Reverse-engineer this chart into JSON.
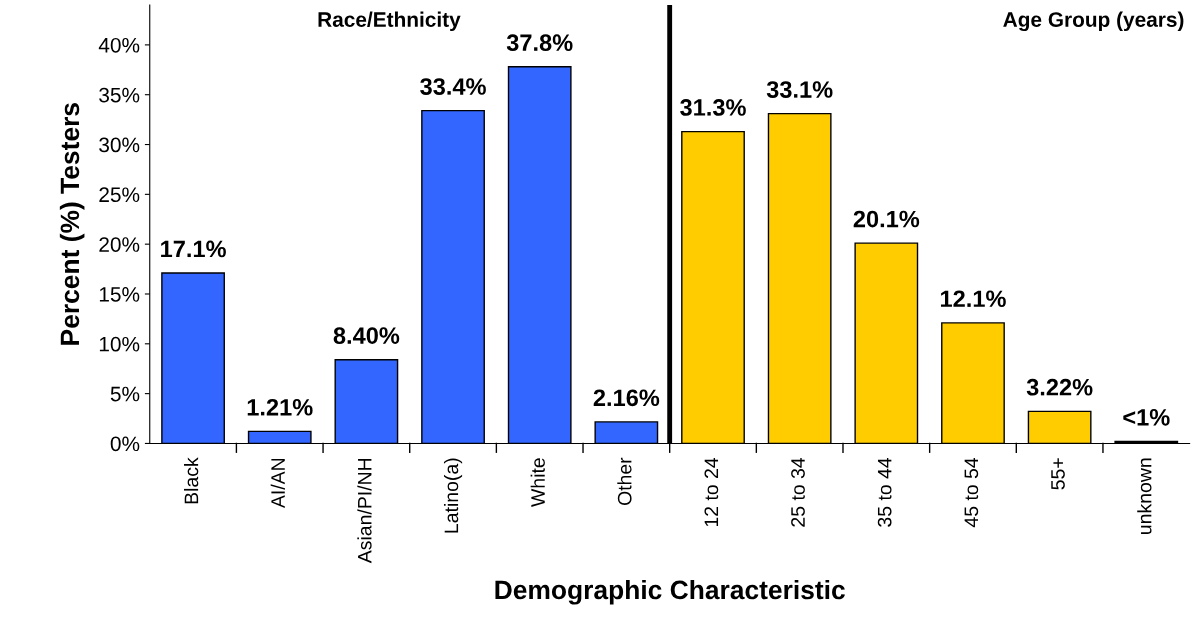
{
  "chart_data": {
    "type": "bar",
    "xlabel": "Demographic Characteristic",
    "ylabel": "Percent (%) Testers",
    "categories": [
      "Black",
      "AI/AN",
      "Asian/PI/NH",
      "Latino(a)",
      "White",
      "Other",
      "12 to 24",
      "25 to 34",
      "35 to 44",
      "45 to 54",
      "55+",
      "unknown"
    ],
    "values": [
      17.1,
      1.21,
      8.4,
      33.4,
      37.8,
      2.16,
      31.3,
      33.1,
      20.1,
      12.1,
      3.22,
      0.2
    ],
    "colors": [
      "#3366ff",
      "#3366ff",
      "#3366ff",
      "#3366ff",
      "#3366ff",
      "#3366ff",
      "#ffcc00",
      "#ffcc00",
      "#ffcc00",
      "#ffcc00",
      "#ffcc00",
      "#000000"
    ],
    "value_labels": [
      "17.1%",
      "1.21%",
      "8.40%",
      "33.4%",
      "37.8%",
      "2.16%",
      "31.3%",
      "33.1%",
      "20.1%",
      "12.1%",
      "3.22%",
      "<1%"
    ],
    "ylim": [
      0,
      44
    ],
    "yticks": [
      {
        "value": 0,
        "label": "0%"
      },
      {
        "value": 5,
        "label": "5%"
      },
      {
        "value": 10,
        "label": "10%"
      },
      {
        "value": 15,
        "label": "15%"
      },
      {
        "value": 20,
        "label": "20%"
      },
      {
        "value": 25,
        "label": "25%"
      },
      {
        "value": 30,
        "label": "30%"
      },
      {
        "value": 35,
        "label": "35%"
      },
      {
        "value": 40,
        "label": "40%"
      }
    ],
    "annotations": [
      "Race/Ethnicity",
      "Age Group (years)"
    ],
    "grid": false,
    "legend": false
  }
}
